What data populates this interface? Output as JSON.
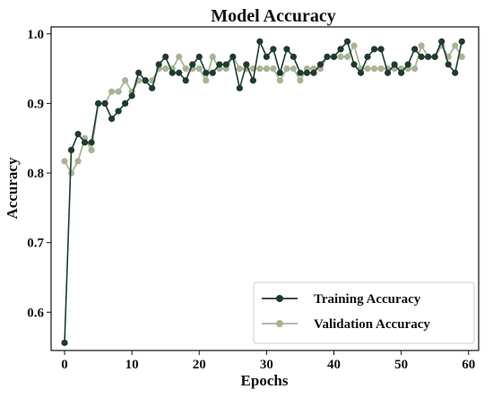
{
  "chart_data": {
    "type": "line",
    "title": "Model Accuracy",
    "xlabel": "Epochs",
    "ylabel": "Accuracy",
    "xlim": [
      -2,
      61.5
    ],
    "ylim": [
      0.545,
      1.01
    ],
    "xticks": [
      0,
      10,
      20,
      30,
      40,
      50,
      60
    ],
    "yticks": [
      0.6,
      0.7,
      0.8,
      0.9,
      1.0
    ],
    "xtick_labels": [
      "0",
      "10",
      "20",
      "30",
      "40",
      "50",
      "60"
    ],
    "ytick_labels": [
      "0.6",
      "0.7",
      "0.8",
      "0.9",
      "1.0"
    ],
    "grid": false,
    "legend_position": "lower-right",
    "x": [
      0,
      1,
      2,
      3,
      4,
      5,
      6,
      7,
      8,
      9,
      10,
      11,
      12,
      13,
      14,
      15,
      16,
      17,
      18,
      19,
      20,
      21,
      22,
      23,
      24,
      25,
      26,
      27,
      28,
      29,
      30,
      31,
      32,
      33,
      34,
      35,
      36,
      37,
      38,
      39,
      40,
      41,
      42,
      43,
      44,
      45,
      46,
      47,
      48,
      49,
      50,
      51,
      52,
      53,
      54,
      55,
      56,
      57,
      58,
      59
    ],
    "series": [
      {
        "name": "Training Accuracy",
        "color": "#1f3a30",
        "values": [
          0.556,
          0.833,
          0.856,
          0.844,
          0.844,
          0.9,
          0.9,
          0.878,
          0.889,
          0.9,
          0.911,
          0.944,
          0.933,
          0.922,
          0.956,
          0.967,
          0.944,
          0.944,
          0.933,
          0.956,
          0.967,
          0.944,
          0.944,
          0.956,
          0.956,
          0.967,
          0.922,
          0.956,
          0.933,
          0.989,
          0.967,
          0.978,
          0.944,
          0.978,
          0.967,
          0.944,
          0.944,
          0.944,
          0.956,
          0.967,
          0.967,
          0.978,
          0.989,
          0.956,
          0.944,
          0.967,
          0.978,
          0.978,
          0.944,
          0.956,
          0.944,
          0.956,
          0.978,
          0.967,
          0.967,
          0.967,
          0.989,
          0.956,
          0.944,
          0.989
        ]
      },
      {
        "name": "Validation Accuracy",
        "color": "#a8b494",
        "values": [
          0.817,
          0.8,
          0.817,
          0.85,
          0.833,
          0.9,
          0.9,
          0.917,
          0.917,
          0.933,
          0.917,
          0.933,
          0.933,
          0.933,
          0.95,
          0.95,
          0.95,
          0.967,
          0.95,
          0.95,
          0.95,
          0.933,
          0.967,
          0.95,
          0.95,
          0.967,
          0.95,
          0.95,
          0.95,
          0.95,
          0.95,
          0.95,
          0.933,
          0.95,
          0.95,
          0.933,
          0.95,
          0.95,
          0.95,
          0.967,
          0.967,
          0.967,
          0.967,
          0.983,
          0.95,
          0.95,
          0.95,
          0.95,
          0.95,
          0.95,
          0.95,
          0.95,
          0.95,
          0.983,
          0.967,
          0.967,
          0.983,
          0.967,
          0.983,
          0.967
        ]
      }
    ]
  }
}
